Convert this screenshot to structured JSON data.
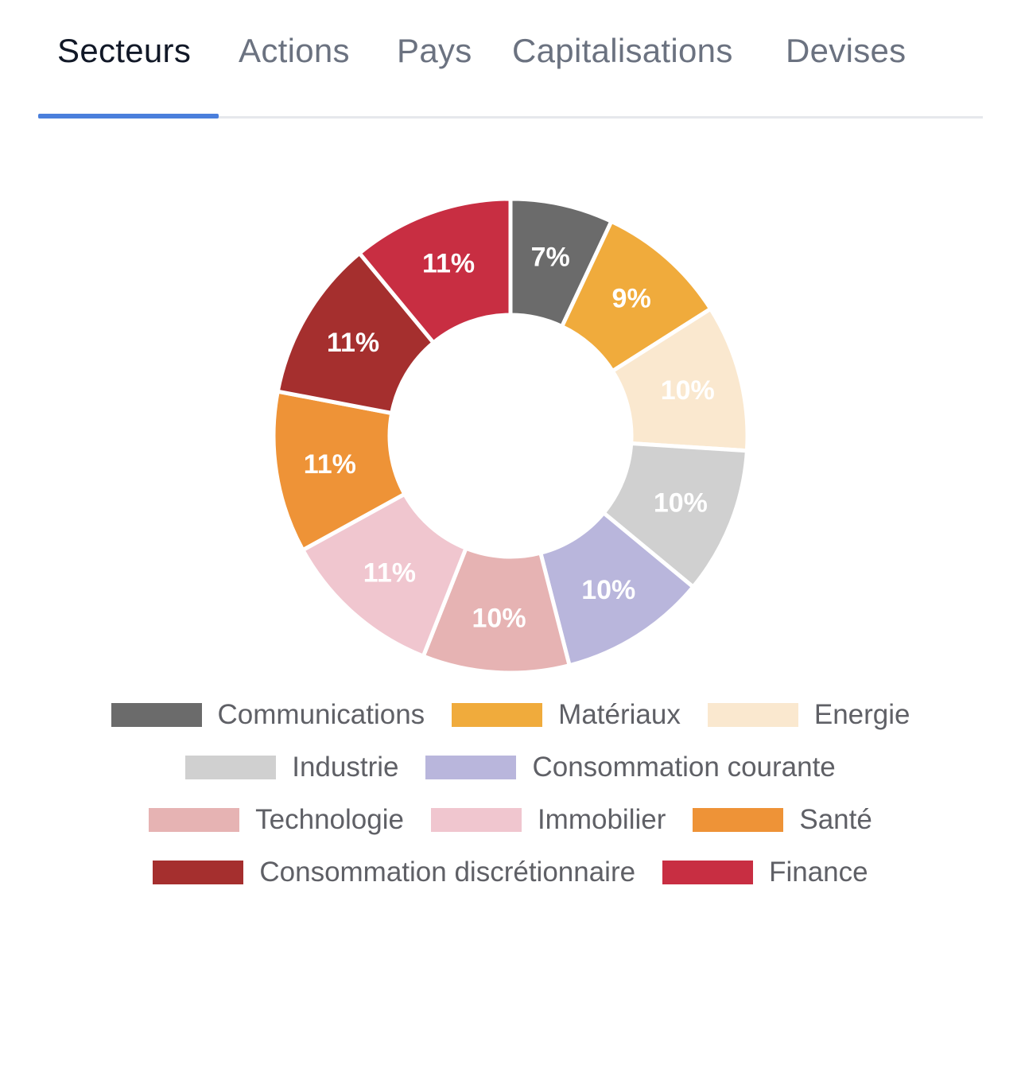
{
  "tabs": [
    {
      "label": "Secteurs",
      "active": true
    },
    {
      "label": "Actions",
      "active": false
    },
    {
      "label": "Pays",
      "active": false
    },
    {
      "label": "Capitalisations",
      "active": false
    },
    {
      "label": "Devises",
      "active": false
    }
  ],
  "chart_data": {
    "type": "pie",
    "donut": true,
    "title": "",
    "legend_position": "bottom",
    "categories": [
      "Communications",
      "Matériaux",
      "Energie",
      "Industrie",
      "Consommation courante",
      "Technologie",
      "Immobilier",
      "Santé",
      "Consommation discrétionnaire",
      "Finance"
    ],
    "values": [
      7,
      9,
      10,
      10,
      10,
      10,
      11,
      11,
      11,
      11
    ],
    "value_labels": [
      "7%",
      "9%",
      "10%",
      "10%",
      "10%",
      "10%",
      "11%",
      "11%",
      "11%",
      "11%"
    ],
    "colors": [
      "#6b6b6b",
      "#f0ab3c",
      "#fae8cf",
      "#d0d0d0",
      "#b9b6dc",
      "#e6b3b3",
      "#f0c6cf",
      "#ee9337",
      "#a52f2e",
      "#c82e42"
    ]
  }
}
